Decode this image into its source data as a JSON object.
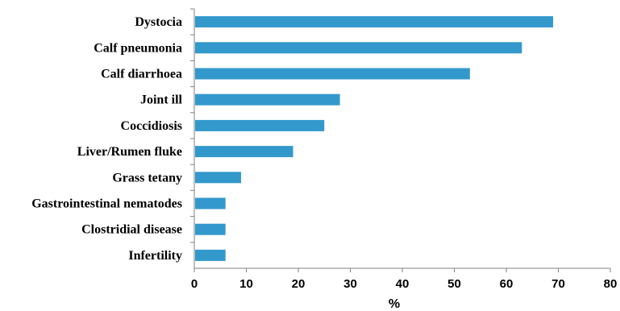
{
  "chart_data": {
    "type": "bar",
    "orientation": "horizontal",
    "categories": [
      "Dystocia",
      "Calf pneumonia",
      "Calf diarrhoea",
      "Joint ill",
      "Coccidiosis",
      "Liver/Rumen fluke",
      "Grass tetany",
      "Gastrointestinal nematodes",
      "Clostridial disease",
      "Infertility"
    ],
    "values": [
      69,
      63,
      53,
      28,
      25,
      19,
      9,
      6,
      6,
      6
    ],
    "xlabel": "%",
    "ylabel": "",
    "xlim": [
      0,
      80
    ],
    "xticks": [
      "0",
      "10",
      "20",
      "30",
      "40",
      "50",
      "60",
      "70",
      "80"
    ],
    "grid": false,
    "legend": "none",
    "bar_color": "#3399CC"
  }
}
